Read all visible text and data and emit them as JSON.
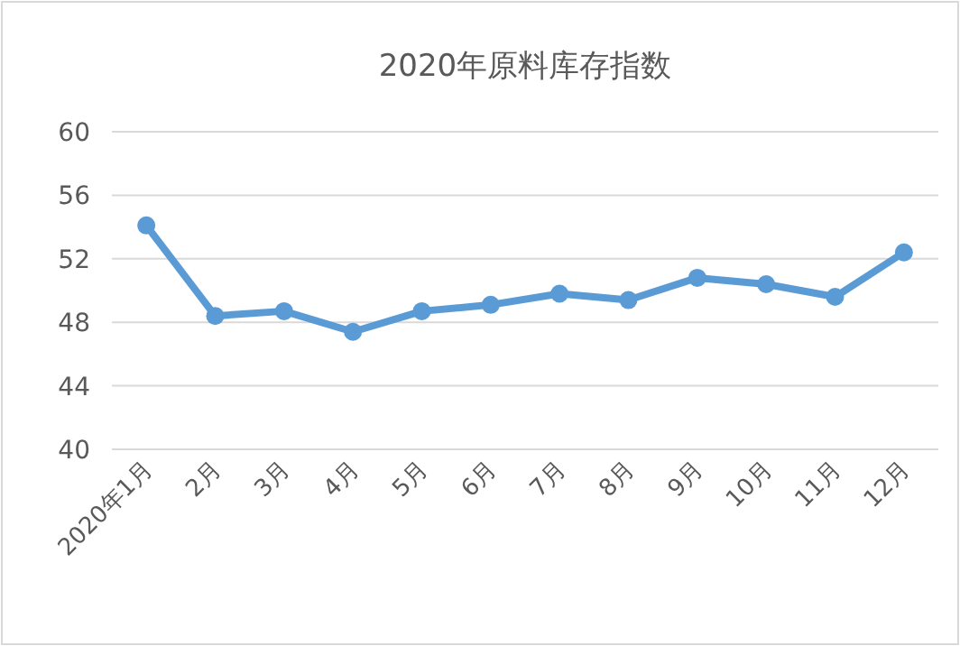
{
  "chart_data": {
    "type": "line",
    "title": "2020年原料库存指数",
    "categories": [
      "2020年1月",
      "2月",
      "3月",
      "4月",
      "5月",
      "6月",
      "7月",
      "8月",
      "9月",
      "10月",
      "11月",
      "12月"
    ],
    "values": [
      54.1,
      48.4,
      48.7,
      47.4,
      48.7,
      49.1,
      49.8,
      49.4,
      50.8,
      50.4,
      49.6,
      52.4
    ],
    "color": "#5b9bd5",
    "ylim": [
      40,
      60
    ],
    "yticks": [
      40,
      44,
      48,
      52,
      56,
      60
    ],
    "grid": "y",
    "marker": "circle",
    "line_style": "solid"
  }
}
